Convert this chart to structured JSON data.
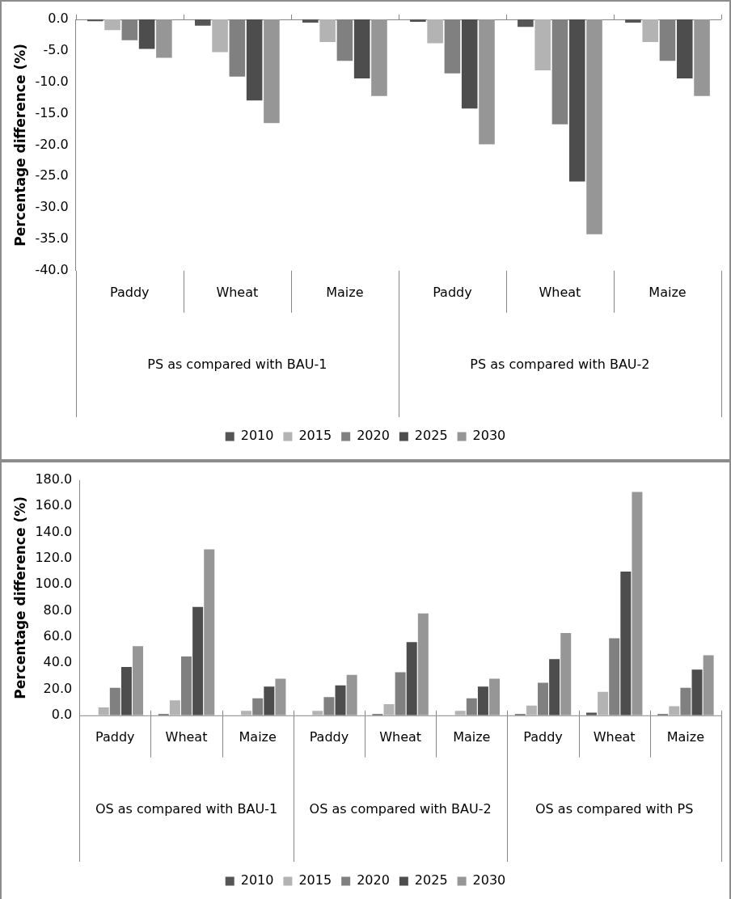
{
  "chart_data": [
    {
      "type": "bar",
      "ylabel": "Percentage difference (%)",
      "categories": [
        "Paddy",
        "Wheat",
        "Maize",
        "Paddy",
        "Wheat",
        "Maize"
      ],
      "series": [
        {
          "name": "2010",
          "color": "#555555",
          "values": [
            -0.3,
            -1.0,
            -0.5,
            -0.4,
            -1.2,
            -0.5
          ]
        },
        {
          "name": "2015",
          "color": "#b3b3b3",
          "values": [
            -1.7,
            -5.2,
            -3.6,
            -3.8,
            -8.1,
            -3.6
          ]
        },
        {
          "name": "2020",
          "color": "#808080",
          "values": [
            -3.3,
            -9.1,
            -6.6,
            -8.6,
            -16.7,
            -6.6
          ]
        },
        {
          "name": "2025",
          "color": "#4d4d4d",
          "values": [
            -4.7,
            -12.9,
            -9.4,
            -14.2,
            -25.8,
            -9.4
          ]
        },
        {
          "name": "2030",
          "color": "#969696",
          "values": [
            -6.1,
            -16.5,
            -12.2,
            -19.9,
            -34.2,
            -12.2
          ]
        }
      ],
      "ylim": [
        -40,
        0
      ],
      "yticks": [
        {
          "value": 0,
          "label": "0.0"
        },
        {
          "value": -5,
          "label": "-5.0"
        },
        {
          "value": -10,
          "label": "-10.0"
        },
        {
          "value": -15,
          "label": "-15.0"
        },
        {
          "value": -20,
          "label": "-20.0"
        },
        {
          "value": -25,
          "label": "-25.0"
        },
        {
          "value": -30,
          "label": "-30.0"
        },
        {
          "value": -35,
          "label": "-35.0"
        },
        {
          "value": -40,
          "label": "-40.0"
        }
      ],
      "annotations": [
        "PS as compared with BAU-1",
        "PS as compared with BAU-2"
      ],
      "grid": false,
      "legend": "bottom"
    },
    {
      "type": "bar",
      "ylabel": "Percentage difference (%)",
      "categories": [
        "Paddy",
        "Wheat",
        "Maize",
        "Paddy",
        "Wheat",
        "Maize",
        "Paddy",
        "Wheat",
        "Maize"
      ],
      "series": [
        {
          "name": "2010",
          "color": "#555555",
          "values": [
            null,
            1,
            null,
            null,
            1,
            null,
            1,
            2,
            1
          ]
        },
        {
          "name": "2015",
          "color": "#b3b3b3",
          "values": [
            6,
            11.5,
            3.5,
            3.5,
            8.5,
            3.5,
            7.5,
            18,
            7
          ]
        },
        {
          "name": "2020",
          "color": "#808080",
          "values": [
            21,
            45,
            13,
            14,
            33,
            13,
            25,
            59,
            21
          ]
        },
        {
          "name": "2025",
          "color": "#4d4d4d",
          "values": [
            37,
            83,
            22,
            23,
            56,
            22,
            43,
            110,
            35
          ]
        },
        {
          "name": "2030",
          "color": "#969696",
          "values": [
            53,
            127,
            28,
            31,
            78,
            28,
            63,
            171,
            46
          ]
        }
      ],
      "ylim": [
        0,
        180
      ],
      "yticks": [
        {
          "value": 0,
          "label": "0.0"
        },
        {
          "value": 20,
          "label": "20.0"
        },
        {
          "value": 40,
          "label": "40.0"
        },
        {
          "value": 60,
          "label": "60.0"
        },
        {
          "value": 80,
          "label": "80.0"
        },
        {
          "value": 100,
          "label": "100.0"
        },
        {
          "value": 120,
          "label": "120.0"
        },
        {
          "value": 140,
          "label": "140.0"
        },
        {
          "value": 160,
          "label": "160.0"
        },
        {
          "value": 180,
          "label": "180.0"
        }
      ],
      "annotations": [
        "OS as compared with BAU-1",
        "OS as compared with BAU-2",
        "OS as compared with PS"
      ],
      "grid": false,
      "legend": "bottom"
    }
  ]
}
